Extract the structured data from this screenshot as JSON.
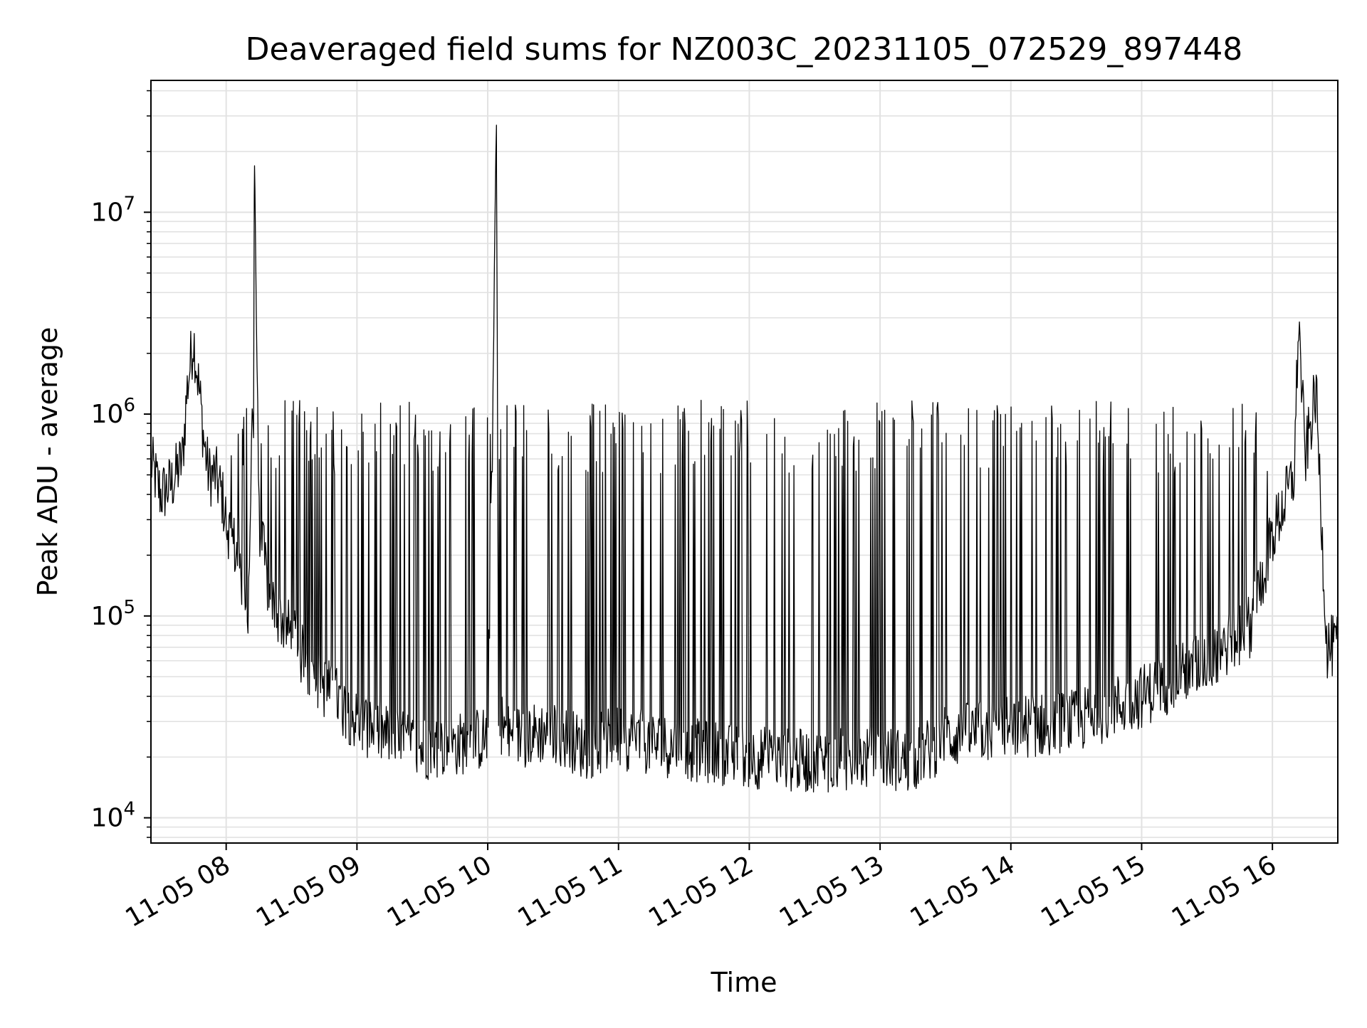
{
  "chart_data": {
    "type": "line",
    "title": "Deaveraged field sums for NZ003C_20231105_072529_897448",
    "xlabel": "Time",
    "ylabel": "Peak ADU - average",
    "yscale": "log",
    "ylim": [
      7500,
      45000000
    ],
    "xlim": [
      "2023-11-05 07:25:29",
      "2023-11-05 16:30:00"
    ],
    "x_tick_labels": [
      "11-05 08",
      "11-05 09",
      "11-05 10",
      "11-05 11",
      "11-05 12",
      "11-05 13",
      "11-05 14",
      "11-05 15",
      "11-05 16"
    ],
    "y_ticks": [
      {
        "value": 10000,
        "base": "10",
        "exp": "4"
      },
      {
        "value": 100000,
        "base": "10",
        "exp": "5"
      },
      {
        "value": 1000000,
        "base": "10",
        "exp": "6"
      },
      {
        "value": 10000000,
        "base": "10",
        "exp": "7"
      }
    ],
    "grid": true,
    "line_color": "#000000",
    "series": [
      {
        "x": [
          "2023-11-05 07:25",
          "2023-11-05 07:30",
          "2023-11-05 07:35",
          "2023-11-05 07:40",
          "2023-11-05 07:42",
          "2023-11-05 07:45",
          "2023-11-05 07:48",
          "2023-11-05 07:50",
          "2023-11-05 07:52",
          "2023-11-05 07:55",
          "2023-11-05 07:58",
          "2023-11-05 08:00",
          "2023-11-05 08:05",
          "2023-11-05 08:10",
          "2023-11-05 08:12",
          "2023-11-05 08:13",
          "2023-11-05 08:15",
          "2023-11-05 08:20",
          "2023-11-05 08:30",
          "2023-11-05 08:40",
          "2023-11-05 08:50",
          "2023-11-05 09:00",
          "2023-11-05 09:15",
          "2023-11-05 09:30",
          "2023-11-05 09:45",
          "2023-11-05 10:00",
          "2023-11-05 10:04",
          "2023-11-05 10:05",
          "2023-11-05 10:06",
          "2023-11-05 10:10",
          "2023-11-05 10:30",
          "2023-11-05 10:45",
          "2023-11-05 11:00",
          "2023-11-05 11:30",
          "2023-11-05 12:00",
          "2023-11-05 12:30",
          "2023-11-05 13:00",
          "2023-11-05 13:15",
          "2023-11-05 13:30",
          "2023-11-05 14:00",
          "2023-11-05 14:30",
          "2023-11-05 15:00",
          "2023-11-05 15:30",
          "2023-11-05 15:50",
          "2023-11-05 16:00",
          "2023-11-05 16:10",
          "2023-11-05 16:12",
          "2023-11-05 16:15",
          "2023-11-05 16:20",
          "2023-11-05 16:25",
          "2023-11-05 16:30"
        ],
        "y": [
          600000,
          400000,
          450000,
          600000,
          1300000,
          2400000,
          1200000,
          700000,
          500000,
          500000,
          400000,
          300000,
          200000,
          100000,
          1000000,
          17000000,
          300000,
          120000,
          80000,
          50000,
          40000,
          30000,
          25000,
          22000,
          23000,
          25000,
          27000000,
          25000,
          30000,
          25000,
          27000,
          22000,
          25000,
          22000,
          20000,
          19000,
          20000,
          19000,
          25000,
          28000,
          30000,
          40000,
          60000,
          90000,
          250000,
          500000,
          3000000,
          600000,
          1300000,
          70000,
          70000
        ]
      }
    ]
  }
}
